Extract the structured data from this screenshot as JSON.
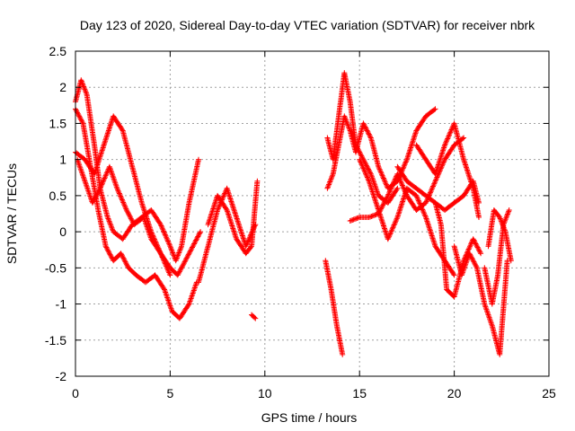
{
  "chart_data": {
    "type": "scatter",
    "title": "Day 123 of 2020, Sidereal Day-to-day VTEC variation (SDTVAR) for receiver nbrk",
    "xlabel": "GPS time / hours",
    "ylabel": "SDTVAR / TECUs",
    "xlim": [
      0,
      25
    ],
    "ylim": [
      -2,
      2.5
    ],
    "xticks": [
      0,
      5,
      10,
      15,
      20,
      25
    ],
    "xtick_labels": [
      "0",
      "5",
      "10",
      "15",
      "20",
      "25"
    ],
    "yticks": [
      -2,
      -1.5,
      -1,
      -0.5,
      0,
      0.5,
      1,
      1.5,
      2,
      2.5
    ],
    "ytick_labels": [
      "-2",
      "-1.5",
      "-1",
      "-0.5",
      "0",
      "0.5",
      "1",
      "1.5",
      "2",
      "2.5"
    ],
    "grid": true,
    "marker": "plus",
    "color": "#ff0000",
    "series": [
      {
        "name": "s1",
        "x": [
          0.0,
          0.3,
          0.6,
          1.0,
          1.3,
          1.7,
          2.0,
          2.5,
          3.0,
          3.5,
          4.0,
          4.5,
          5.0,
          5.3,
          5.6,
          6.0,
          6.5
        ],
        "y": [
          1.8,
          2.1,
          1.9,
          1.2,
          0.6,
          0.2,
          0.0,
          -0.1,
          0.1,
          0.2,
          0.3,
          0.1,
          -0.2,
          -0.4,
          -0.2,
          0.4,
          1.0
        ]
      },
      {
        "name": "s2",
        "x": [
          0.0,
          0.4,
          0.8,
          1.2,
          1.6,
          2.0,
          2.4,
          2.8,
          3.2,
          3.7,
          4.2,
          4.7,
          5.1,
          5.5,
          6.0,
          6.4
        ],
        "y": [
          1.7,
          1.5,
          0.9,
          0.3,
          -0.2,
          -0.4,
          -0.3,
          -0.5,
          -0.6,
          -0.7,
          -0.6,
          -0.8,
          -1.1,
          -1.2,
          -1.0,
          -0.7
        ]
      },
      {
        "name": "s3",
        "x": [
          0.0,
          0.5,
          1.0,
          1.5,
          2.0,
          2.5,
          3.0,
          3.5,
          4.0,
          4.5,
          5.0,
          5.4,
          5.8,
          6.2,
          6.6
        ],
        "y": [
          1.1,
          1.0,
          0.8,
          1.2,
          1.6,
          1.4,
          0.9,
          0.4,
          0.0,
          -0.3,
          -0.5,
          -0.6,
          -0.4,
          -0.2,
          0.0
        ]
      },
      {
        "name": "s4",
        "x": [
          0.1,
          0.5,
          0.9,
          1.3,
          1.8,
          2.2,
          2.7,
          3.1,
          3.6,
          4.0,
          4.5,
          5.0
        ],
        "y": [
          1.0,
          0.7,
          0.4,
          0.6,
          0.9,
          0.6,
          0.3,
          0.1,
          0.2,
          -0.1,
          -0.3,
          -0.6
        ]
      },
      {
        "name": "s5",
        "x": [
          6.5,
          7.0,
          7.5,
          8.0,
          8.5,
          9.0,
          9.5
        ],
        "y": [
          -0.7,
          -0.2,
          0.3,
          0.6,
          0.2,
          -0.2,
          0.1
        ]
      },
      {
        "name": "s6",
        "x": [
          7.0,
          7.5,
          8.0,
          8.5,
          9.0,
          9.3,
          9.6
        ],
        "y": [
          0.1,
          0.5,
          0.3,
          -0.1,
          -0.3,
          -0.2,
          0.7
        ]
      },
      {
        "name": "s7",
        "x": [
          9.3,
          9.5
        ],
        "y": [
          -1.15,
          -1.2
        ]
      },
      {
        "name": "s8",
        "x": [
          13.2,
          13.5,
          13.8,
          14.1
        ],
        "y": [
          -0.4,
          -0.8,
          -1.3,
          -1.7
        ]
      },
      {
        "name": "s9",
        "x": [
          13.3,
          13.6,
          13.9,
          14.2,
          14.5,
          14.8,
          15.2,
          15.6,
          16.0,
          16.5,
          17.0
        ],
        "y": [
          1.3,
          1.0,
          1.6,
          2.2,
          1.8,
          1.2,
          1.0,
          0.8,
          0.5,
          0.4,
          0.6
        ]
      },
      {
        "name": "s10",
        "x": [
          13.3,
          13.6,
          13.9,
          14.2,
          14.5,
          14.8,
          15.2,
          15.6,
          16.0,
          16.5,
          17.0,
          17.5,
          18.0,
          18.5,
          19.0
        ],
        "y": [
          0.6,
          0.8,
          1.2,
          1.6,
          1.4,
          1.1,
          1.5,
          1.3,
          0.9,
          0.6,
          0.7,
          1.0,
          1.4,
          1.6,
          1.7
        ]
      },
      {
        "name": "s11",
        "x": [
          14.5,
          15.0,
          15.5,
          16.0,
          16.5,
          17.0,
          17.5,
          18.0,
          18.5,
          19.0,
          19.5,
          20.0,
          20.5
        ],
        "y": [
          0.15,
          0.2,
          0.2,
          0.25,
          0.5,
          0.8,
          0.5,
          0.3,
          0.4,
          0.7,
          1.0,
          1.2,
          1.3
        ]
      },
      {
        "name": "s12",
        "x": [
          15.0,
          15.5,
          16.0,
          16.5,
          17.0,
          17.5,
          18.0,
          18.5,
          19.0,
          19.5,
          20.0
        ],
        "y": [
          1.0,
          0.7,
          0.3,
          -0.1,
          0.2,
          0.6,
          0.5,
          0.2,
          -0.2,
          -0.4,
          -0.6
        ]
      },
      {
        "name": "s13",
        "x": [
          17.0,
          17.5,
          18.0,
          18.5,
          19.0,
          19.3,
          19.6,
          20.0,
          20.5,
          21.0,
          21.4
        ],
        "y": [
          0.9,
          0.7,
          0.6,
          0.5,
          0.4,
          0.1,
          -0.8,
          -0.9,
          -0.4,
          -0.1,
          -0.3
        ]
      },
      {
        "name": "s14",
        "x": [
          18.0,
          18.5,
          19.0,
          19.5,
          20.0,
          20.5,
          21.0,
          21.3
        ],
        "y": [
          1.2,
          1.0,
          0.8,
          1.2,
          1.5,
          1.0,
          0.6,
          0.2
        ]
      },
      {
        "name": "s15",
        "x": [
          19.0,
          19.5,
          20.0,
          20.5,
          21.0,
          21.3
        ],
        "y": [
          0.4,
          0.3,
          0.4,
          0.5,
          0.7,
          0.4
        ]
      },
      {
        "name": "s16",
        "x": [
          20.0,
          20.4,
          20.8,
          21.2,
          21.6,
          22.0,
          22.4,
          22.8
        ],
        "y": [
          -0.2,
          -0.6,
          -0.3,
          -0.5,
          -1.0,
          -1.3,
          -1.7,
          -0.4
        ]
      },
      {
        "name": "s17",
        "x": [
          21.8,
          22.1,
          22.4,
          22.7,
          23.0
        ],
        "y": [
          -0.2,
          0.3,
          0.2,
          0.0,
          -0.4
        ]
      },
      {
        "name": "s18",
        "x": [
          21.6,
          22.0,
          22.3,
          22.6,
          22.9
        ],
        "y": [
          -0.5,
          -1.0,
          -0.6,
          0.1,
          0.3
        ]
      }
    ]
  }
}
